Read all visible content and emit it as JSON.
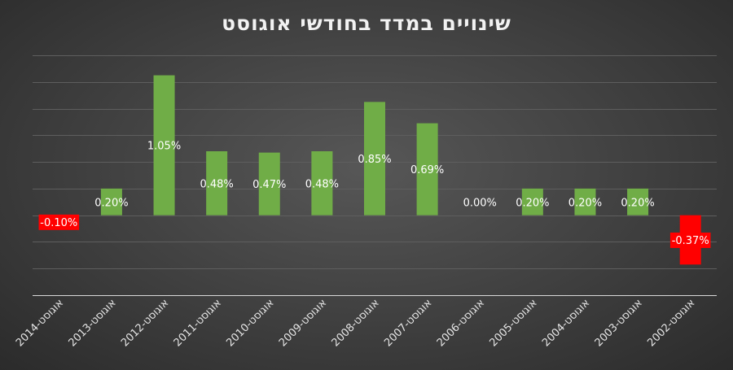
{
  "chart_data": {
    "type": "bar",
    "title": "שינויים במדד בחודשי אוגוסט",
    "categories": [
      "אוגוסט-2014",
      "אוגוסט-2013",
      "אוגוסט-2012",
      "אוגוסט-2011",
      "אוגוסט-2010",
      "אוגוסט-2009",
      "אוגוסט-2008",
      "אוגוסט-2007",
      "אוגוסט-2006",
      "אוגוסט-2005",
      "אוגוסט-2004",
      "אוגוסט-2003",
      "אוגוסט-2002"
    ],
    "values": [
      -0.1,
      0.2,
      1.05,
      0.48,
      0.47,
      0.48,
      0.85,
      0.69,
      0.0,
      0.2,
      0.2,
      0.2,
      -0.37
    ],
    "data_labels": [
      "-0.10%",
      "0.20%",
      "1.05%",
      "0.48%",
      "0.47%",
      "0.48%",
      "0.85%",
      "0.69%",
      "0.00%",
      "0.20%",
      "0.20%",
      "0.20%",
      "-0.37%"
    ],
    "ylim": [
      -0.6,
      1.2
    ],
    "gridlines": true,
    "legend": "none",
    "colors": {
      "positive": "#70ad47",
      "negative": "#ff0000",
      "grid": "#5e5e5e",
      "axis": "#d9d9d9",
      "text": "#e6e6e6"
    }
  }
}
